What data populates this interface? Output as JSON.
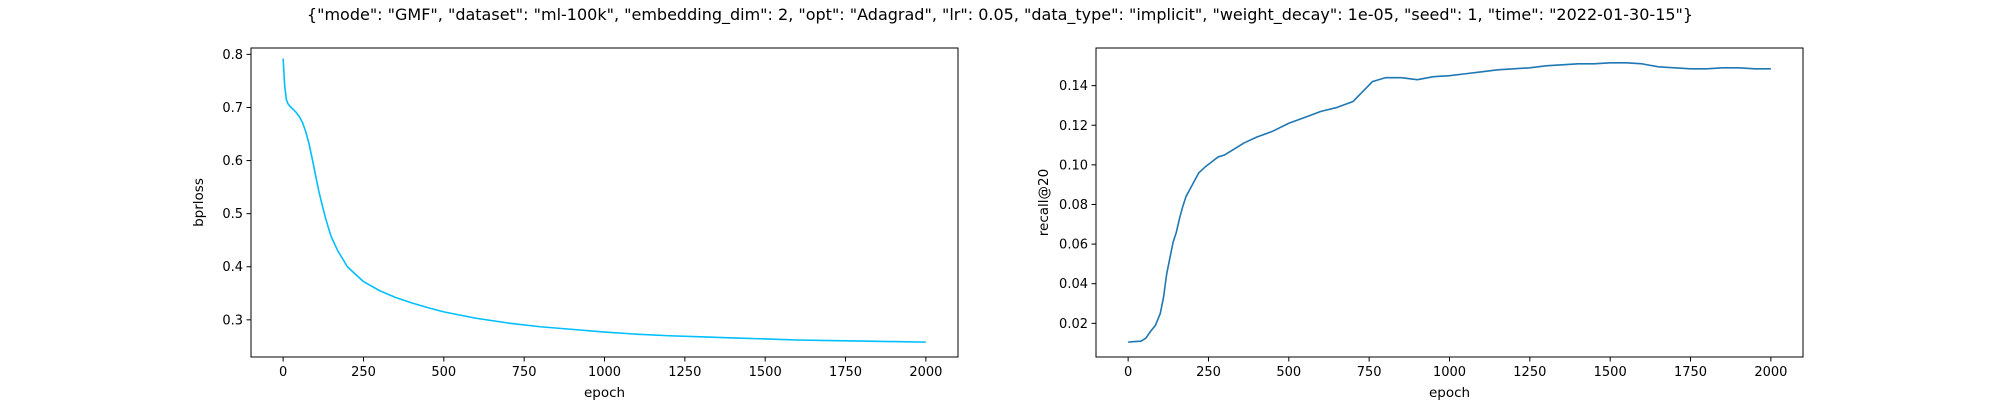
{
  "figure": {
    "title": "{\"mode\": \"GMF\", \"dataset\": \"ml-100k\", \"embedding_dim\": 2, \"opt\": \"Adagrad\", \"lr\": 0.05, \"data_type\": \"implicit\", \"weight_decay\": 1e-05, \"seed\": 1, \"time\": \"2022-01-30-15\"}"
  },
  "chart_data": [
    {
      "type": "line",
      "xlabel": "epoch",
      "ylabel": "bprloss",
      "xlim": [
        -100,
        2100
      ],
      "ylim": [
        0.23,
        0.812
      ],
      "xticks": [
        0,
        250,
        500,
        750,
        1000,
        1250,
        1500,
        1750,
        2000
      ],
      "yticks": [
        0.3,
        0.4,
        0.5,
        0.6,
        0.7,
        0.8
      ],
      "grid": false,
      "color": "#00bfff",
      "series": [
        {
          "x": [
            0,
            2,
            5,
            10,
            15,
            20,
            30,
            40,
            50,
            60,
            70,
            80,
            90,
            100,
            110,
            120,
            130,
            140,
            150,
            170,
            200,
            230,
            250,
            300,
            350,
            400,
            450,
            500,
            600,
            700,
            800,
            900,
            1000,
            1100,
            1200,
            1300,
            1400,
            1500,
            1600,
            1700,
            1800,
            1900,
            2000
          ],
          "y": [
            0.792,
            0.77,
            0.74,
            0.715,
            0.707,
            0.703,
            0.697,
            0.691,
            0.683,
            0.672,
            0.655,
            0.633,
            0.605,
            0.575,
            0.545,
            0.52,
            0.496,
            0.475,
            0.456,
            0.43,
            0.4,
            0.383,
            0.372,
            0.355,
            0.342,
            0.332,
            0.323,
            0.315,
            0.303,
            0.294,
            0.287,
            0.282,
            0.277,
            0.273,
            0.27,
            0.268,
            0.266,
            0.264,
            0.262,
            0.261,
            0.26,
            0.259,
            0.258
          ]
        }
      ]
    },
    {
      "type": "line",
      "xlabel": "epoch",
      "ylabel": "recall@20",
      "xlim": [
        -100,
        2100
      ],
      "ylim": [
        0.003,
        0.159
      ],
      "xticks": [
        0,
        250,
        500,
        750,
        1000,
        1250,
        1500,
        1750,
        2000
      ],
      "yticks": [
        0.02,
        0.04,
        0.06,
        0.08,
        0.1,
        0.12,
        0.14
      ],
      "grid": false,
      "color": "#1f77b4",
      "series": [
        {
          "x": [
            0,
            20,
            40,
            55,
            70,
            85,
            100,
            110,
            120,
            130,
            140,
            150,
            160,
            170,
            180,
            190,
            200,
            220,
            240,
            260,
            280,
            300,
            330,
            360,
            400,
            450,
            500,
            550,
            600,
            650,
            700,
            730,
            760,
            800,
            850,
            900,
            950,
            1000,
            1050,
            1100,
            1150,
            1200,
            1250,
            1300,
            1350,
            1400,
            1450,
            1500,
            1550,
            1600,
            1650,
            1700,
            1750,
            1800,
            1850,
            1900,
            1950,
            2000
          ],
          "y": [
            0.0105,
            0.0108,
            0.011,
            0.0125,
            0.016,
            0.019,
            0.025,
            0.033,
            0.045,
            0.053,
            0.061,
            0.066,
            0.073,
            0.079,
            0.084,
            0.087,
            0.09,
            0.096,
            0.099,
            0.1015,
            0.104,
            0.105,
            0.108,
            0.111,
            0.114,
            0.117,
            0.121,
            0.124,
            0.127,
            0.129,
            0.132,
            0.137,
            0.142,
            0.144,
            0.144,
            0.143,
            0.1445,
            0.145,
            0.146,
            0.147,
            0.148,
            0.1485,
            0.149,
            0.15,
            0.1505,
            0.151,
            0.151,
            0.1515,
            0.1515,
            0.151,
            0.1495,
            0.149,
            0.1485,
            0.1485,
            0.149,
            0.149,
            0.1485,
            0.1485
          ]
        }
      ]
    }
  ]
}
